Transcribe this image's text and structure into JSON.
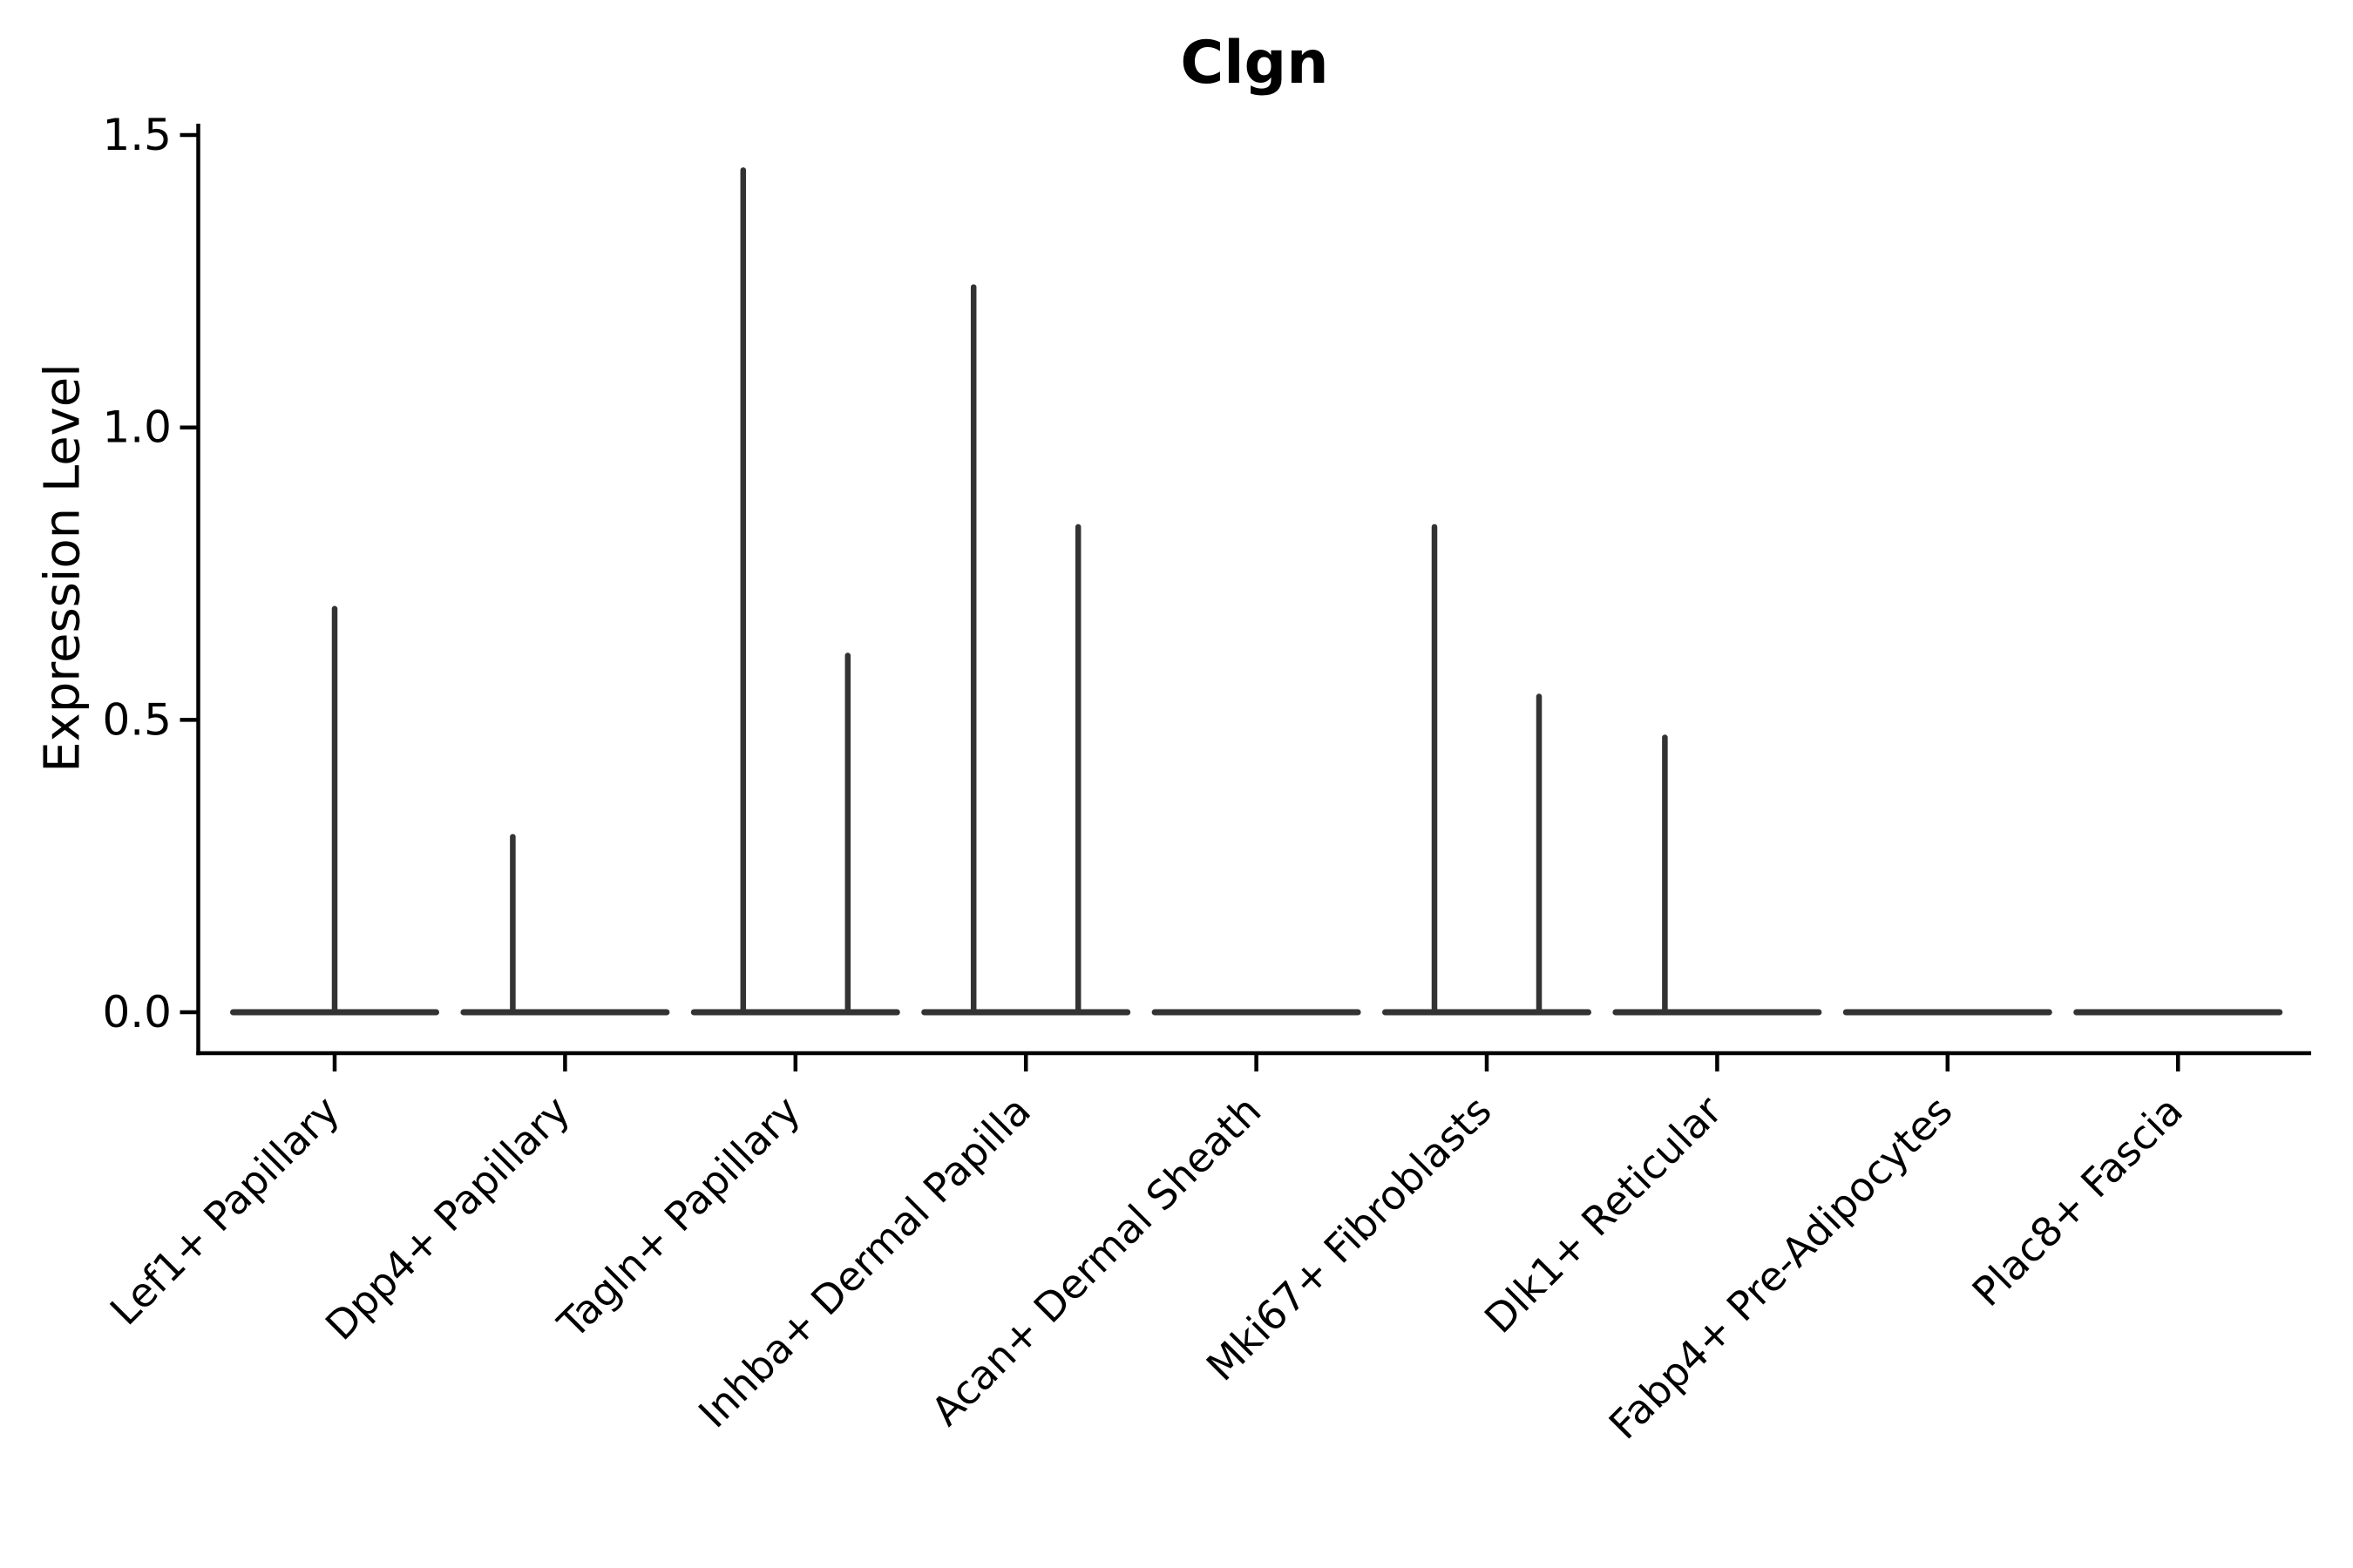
{
  "chart_data": {
    "type": "violin",
    "title": "Clgn",
    "xlabel": "",
    "ylabel": "Expression Level",
    "ylim": [
      0,
      1.52
    ],
    "yticks": [
      0,
      0.5,
      1,
      1.5
    ],
    "ytick_labels": [
      "0.0",
      "0.5",
      "1.0",
      "1.5"
    ],
    "grid": false,
    "legend_position": "none",
    "categories": [
      "Lef1+ Papillary",
      "Dpp4+ Papillary",
      "Tagln+ Papillary",
      "Inhba+ Dermal Papilla",
      "Acan+ Dermal Sheath",
      "Mki67+ Fibroblasts",
      "Dlk1+ Reticular",
      "Fabp4+ Pre-Adipocytes",
      "Plac8+ Fascia"
    ],
    "violins": [
      {
        "category": "Lef1+ Papillary",
        "zero_body": true,
        "spikes": [
          {
            "position": "center",
            "value": 0.69
          }
        ]
      },
      {
        "category": "Dpp4+ Papillary",
        "zero_body": true,
        "spikes": [
          {
            "position": "left",
            "value": 0.3
          }
        ]
      },
      {
        "category": "Tagln+ Papillary",
        "zero_body": true,
        "spikes": [
          {
            "position": "left",
            "value": 1.44
          },
          {
            "position": "right",
            "value": 0.61
          }
        ]
      },
      {
        "category": "Inhba+ Dermal Papilla",
        "zero_body": true,
        "spikes": [
          {
            "position": "left",
            "value": 1.24
          },
          {
            "position": "right",
            "value": 0.83
          }
        ]
      },
      {
        "category": "Acan+ Dermal Sheath",
        "zero_body": true,
        "spikes": []
      },
      {
        "category": "Mki67+ Fibroblasts",
        "zero_body": true,
        "spikes": [
          {
            "position": "left",
            "value": 0.83
          },
          {
            "position": "right",
            "value": 0.54
          }
        ]
      },
      {
        "category": "Dlk1+ Reticular",
        "zero_body": true,
        "spikes": [
          {
            "position": "left",
            "value": 0.47
          }
        ]
      },
      {
        "category": "Fabp4+ Pre-Adipocytes",
        "zero_body": true,
        "spikes": []
      },
      {
        "category": "Plac8+ Fascia",
        "zero_body": true,
        "spikes": []
      }
    ],
    "style": {
      "violin_color": "#333333",
      "axis_color": "#000000",
      "text_color": "#000000",
      "background": "#ffffff"
    }
  }
}
